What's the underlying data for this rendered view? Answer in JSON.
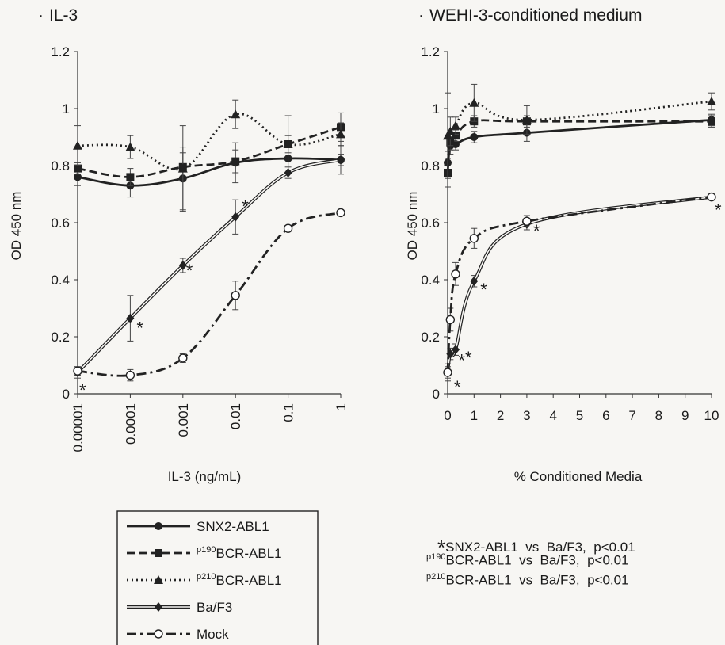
{
  "chart_data": [
    {
      "type": "line",
      "title": "IL-3",
      "xlabel": "IL-3 (ng/mL)",
      "ylabel": "OD 450 nm",
      "x_scale": "log",
      "x": [
        1e-05,
        0.0001,
        0.001,
        0.01,
        0.1,
        1
      ],
      "x_tick_labels": [
        "0.00001",
        "0.0001",
        "0.001",
        "0.01",
        "0.1",
        "1"
      ],
      "y_ticks": [
        "0",
        "0.2",
        "0.4",
        "0.6",
        "0.8",
        "1",
        "1.2"
      ],
      "ylim": [
        0,
        1.2
      ],
      "series": [
        {
          "name": "SNX2-ABL1",
          "values": [
            0.76,
            0.73,
            0.755,
            0.81,
            0.825,
            0.82
          ],
          "errors": [
            0.03,
            0.04,
            0.11,
            0.07,
            0.05,
            0.05
          ]
        },
        {
          "name": "p190BCR-ABL1",
          "values": [
            0.79,
            0.76,
            0.795,
            0.815,
            0.875,
            0.935
          ],
          "errors": [
            0.02,
            0.03,
            0.05,
            0.04,
            0.03,
            0.05
          ]
        },
        {
          "name": "p210BCR-ABL1",
          "values": [
            0.87,
            0.865,
            0.79,
            0.98,
            0.875,
            0.91
          ],
          "errors": [
            0.07,
            0.04,
            0.15,
            0.05,
            0.1,
            0.04
          ]
        },
        {
          "name": "Ba/F3",
          "values": [
            0.075,
            0.265,
            0.45,
            0.62,
            0.775,
            0.82
          ],
          "errors": [
            0.02,
            0.08,
            0.025,
            0.06,
            0.02,
            0.02
          ]
        },
        {
          "name": "Mock",
          "values": [
            0.08,
            0.065,
            0.125,
            0.345,
            0.58,
            0.635
          ],
          "errors": [
            0.015,
            0.02,
            0.015,
            0.05,
            0.01,
            0.01
          ]
        }
      ],
      "significance_markers": [
        "*",
        "*",
        "*",
        "*",
        "*"
      ]
    },
    {
      "type": "line",
      "title": "WEHI-3-conditioned medium",
      "xlabel": "% Conditioned Media",
      "ylabel": "OD 450 nm",
      "x": [
        0,
        0.1,
        0.3,
        1,
        3,
        10
      ],
      "x_ticks": [
        "0",
        "1",
        "2",
        "3",
        "4",
        "5",
        "6",
        "7",
        "8",
        "9",
        "10"
      ],
      "xlim": [
        0,
        10
      ],
      "y_ticks": [
        "0",
        "0.2",
        "0.4",
        "0.6",
        "0.8",
        "1",
        "1.2"
      ],
      "ylim": [
        0,
        1.2
      ],
      "series": [
        {
          "name": "SNX2-ABL1",
          "values": [
            0.81,
            0.87,
            0.875,
            0.9,
            0.915,
            0.96
          ],
          "errors": [
            0.04,
            0.03,
            0.02,
            0.02,
            0.03,
            0.02
          ]
        },
        {
          "name": "p190BCR-ABL1",
          "values": [
            0.775,
            0.885,
            0.905,
            0.955,
            0.955,
            0.955
          ],
          "errors": [
            0.05,
            0.03,
            0.02,
            0.02,
            0.02,
            0.02
          ]
        },
        {
          "name": "p210BCR-ABL1",
          "values": [
            0.905,
            0.92,
            0.94,
            1.02,
            0.96,
            1.025
          ],
          "errors": [
            0.15,
            0.05,
            0.03,
            0.065,
            0.05,
            0.03
          ]
        },
        {
          "name": "Ba/F3",
          "values": [
            0.075,
            0.14,
            0.155,
            0.395,
            0.595,
            0.69
          ],
          "errors": [
            0.03,
            0.02,
            0.02,
            0.02,
            0.02,
            0.01
          ]
        },
        {
          "name": "Mock",
          "values": [
            0.075,
            0.26,
            0.42,
            0.545,
            0.605,
            0.69
          ],
          "errors": [
            0.02,
            0.04,
            0.04,
            0.035,
            0.02,
            0.01
          ]
        }
      ],
      "significance_markers": [
        "*",
        "*",
        "*",
        "*",
        "*",
        "*"
      ]
    }
  ],
  "legend": [
    {
      "name": "SNX2-ABL1",
      "prefix": "",
      "main": "SNX2-ABL1"
    },
    {
      "name": "p190BCR-ABL1",
      "prefix": "p190",
      "main": "BCR-ABL1"
    },
    {
      "name": "p210BCR-ABL1",
      "prefix": "p210",
      "main": "BCR-ABL1"
    },
    {
      "name": "Ba/F3",
      "prefix": "",
      "main": "Ba/F3"
    },
    {
      "name": "Mock",
      "prefix": "",
      "main": "Mock"
    }
  ],
  "significance_notes": [
    {
      "star": "*",
      "prefix": "",
      "left": "SNX2-ABL1",
      "vs": "vs",
      "right": "Ba/F3,",
      "p": "p<0.01"
    },
    {
      "star": "",
      "prefix": "p190",
      "left": "BCR-ABL1",
      "vs": "vs",
      "right": "Ba/F3,",
      "p": "p<0.01"
    },
    {
      "star": "",
      "prefix": "p210",
      "left": "BCR-ABL1",
      "vs": "vs",
      "right": "Ba/F3,",
      "p": "p<0.01"
    }
  ],
  "styles": {
    "SNX2-ABL1": {
      "color": "#222222",
      "dash": "",
      "marker": "circle"
    },
    "p190BCR-ABL1": {
      "color": "#222222",
      "dash": "10,5",
      "marker": "square"
    },
    "p210BCR-ABL1": {
      "color": "#222222",
      "dash": "2,4",
      "marker": "triangle"
    },
    "Ba/F3": {
      "color": "#222222",
      "dash": "",
      "marker": "diamond",
      "double": true
    },
    "Mock": {
      "color": "#222222",
      "dash": "12,5,3,5",
      "marker": "open-circle"
    }
  }
}
